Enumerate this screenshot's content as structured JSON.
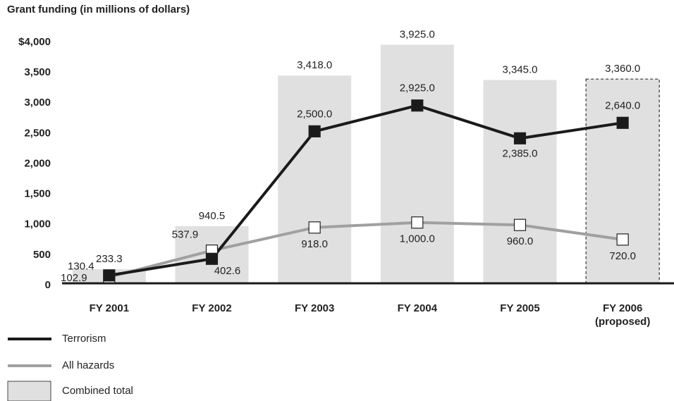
{
  "chart_data": {
    "type": "bar-line",
    "title": "Grant funding (in millions of dollars)",
    "categories": [
      "FY 2001",
      "FY 2002",
      "FY 2003",
      "FY 2004",
      "FY 2005",
      "FY 2006\n(proposed)"
    ],
    "ylim": [
      0,
      4000
    ],
    "yticks": [
      0,
      500,
      {
        "value": 1000,
        "label": "1,000"
      },
      {
        "value": 1500,
        "label": "1,500"
      },
      {
        "value": 2000,
        "label": "2,000"
      },
      {
        "value": 2500,
        "label": "2,500"
      },
      {
        "value": 3000,
        "label": "3,000"
      },
      {
        "value": 3500,
        "label": "3,500"
      },
      {
        "value": 4000,
        "label": "$4,000"
      }
    ],
    "series": [
      {
        "name": "Combined total",
        "kind": "bar",
        "color": "#e0e0e0",
        "dashed": [
          false,
          false,
          false,
          false,
          false,
          true
        ],
        "values": [
          233.3,
          940.5,
          3418.0,
          3925.0,
          3345.0,
          3360.0
        ],
        "value_labels": [
          "233.3",
          "940.5",
          "3,418.0",
          "3,925.0",
          "3,345.0",
          "3,360.0"
        ]
      },
      {
        "name": "Terrorism",
        "kind": "line",
        "color": "#1a1a1a",
        "values": [
          130.4,
          402.6,
          2500.0,
          2925.0,
          2385.0,
          2640.0
        ],
        "value_labels": [
          "130.4",
          "402.6",
          "2,500.0",
          "2,925.0",
          "2,385.0",
          "2,640.0"
        ]
      },
      {
        "name": "All hazards",
        "kind": "line",
        "color": "#a0a0a0",
        "values": [
          102.9,
          537.9,
          918.0,
          1000.0,
          960.0,
          720.0
        ],
        "value_labels": [
          "102.9",
          "537.9",
          "918.0",
          "1,000.0",
          "960.0",
          "720.0"
        ]
      }
    ]
  }
}
